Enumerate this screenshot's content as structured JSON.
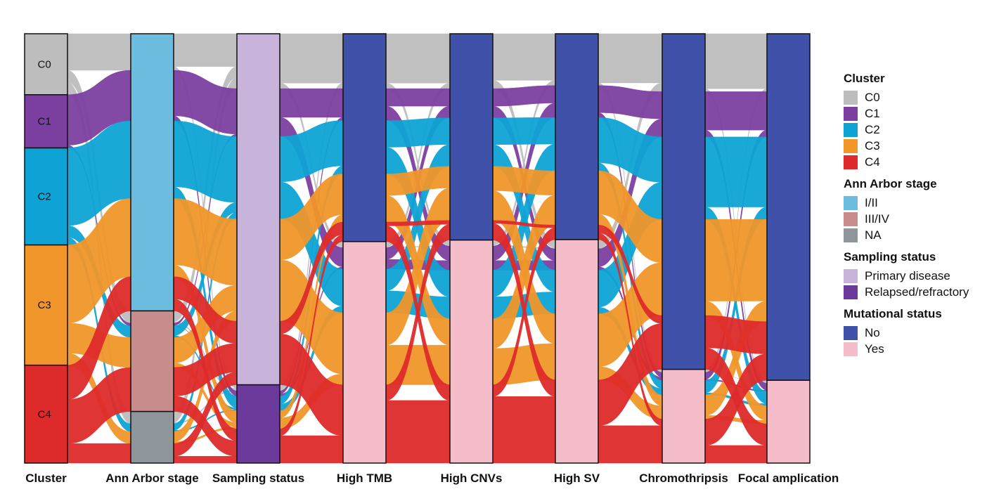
{
  "chart_data": {
    "type": "alluvial",
    "title": "",
    "axes": [
      "Cluster",
      "Ann Arbor stage",
      "Sampling status",
      "High TMB",
      "High CNVs",
      "High SV",
      "Chromothripsis",
      "Focal amplication"
    ],
    "categories": {
      "Cluster": [
        "C0",
        "C1",
        "C2",
        "C3",
        "C4"
      ],
      "Ann Arbor stage": [
        "I/II",
        "III/IV",
        "NA"
      ],
      "Sampling status": [
        "Primary disease",
        "Relapsed/refractory"
      ],
      "Mutational status": [
        "No",
        "Yes"
      ]
    },
    "proportions": {
      "Cluster": [
        0.142,
        0.124,
        0.226,
        0.28,
        0.228
      ],
      "Ann Arbor stage": [
        0.662,
        0.226,
        0.112
      ],
      "Sampling status": [
        0.818,
        0.182
      ],
      "High TMB": [
        0.494,
        0.506
      ],
      "High CNVs": [
        0.494,
        0.506
      ],
      "High SV": [
        0.494,
        0.506
      ],
      "Chromothripsis": [
        0.789,
        0.211
      ],
      "Focal amplication": [
        0.831,
        0.169
      ]
    },
    "flows_by_cluster": {
      "Ann Arbor stage": [
        [
          0.6,
          0.2,
          0.2
        ],
        [
          0.95,
          0.05,
          0.0
        ],
        [
          0.8,
          0.12,
          0.08
        ],
        [
          0.65,
          0.25,
          0.1
        ],
        [
          0.35,
          0.45,
          0.2
        ]
      ],
      "Sampling status": [
        [
          0.9,
          0.1
        ],
        [
          0.9,
          0.1
        ],
        [
          0.85,
          0.15
        ],
        [
          0.85,
          0.15
        ],
        [
          0.65,
          0.35
        ]
      ],
      "High TMB": [
        [
          0.9,
          0.1
        ],
        [
          0.6,
          0.4
        ],
        [
          0.55,
          0.45
        ],
        [
          0.4,
          0.6
        ],
        [
          0.2,
          0.8
        ]
      ],
      "High CNVs": [
        [
          0.9,
          0.1
        ],
        [
          0.55,
          0.45
        ],
        [
          0.5,
          0.5
        ],
        [
          0.45,
          0.55
        ],
        [
          0.2,
          0.8
        ]
      ],
      "High SV": [
        [
          0.85,
          0.15
        ],
        [
          0.6,
          0.4
        ],
        [
          0.55,
          0.45
        ],
        [
          0.45,
          0.55
        ],
        [
          0.15,
          0.85
        ]
      ],
      "Chromothripsis": [
        [
          0.95,
          0.05
        ],
        [
          0.85,
          0.15
        ],
        [
          0.85,
          0.15
        ],
        [
          0.8,
          0.2
        ],
        [
          0.55,
          0.45
        ]
      ],
      "Focal amplication": [
        [
          0.95,
          0.05
        ],
        [
          0.85,
          0.15
        ],
        [
          0.85,
          0.15
        ],
        [
          0.85,
          0.15
        ],
        [
          0.6,
          0.4
        ]
      ]
    },
    "legend_placement": "right",
    "grid": false
  },
  "legend": [
    {
      "title": "Cluster",
      "items": [
        {
          "label": "C0",
          "color": "#bdbdbd"
        },
        {
          "label": "C1",
          "color": "#7b3fa0"
        },
        {
          "label": "C2",
          "color": "#0ea3d4"
        },
        {
          "label": "C3",
          "color": "#f0962a"
        },
        {
          "label": "C4",
          "color": "#de2a2a"
        }
      ]
    },
    {
      "title": "Ann Arbor stage",
      "items": [
        {
          "label": "I/II",
          "color": "#6bbcdf"
        },
        {
          "label": "III/IV",
          "color": "#c98c8c"
        },
        {
          "label": "NA",
          "color": "#8e969c"
        }
      ]
    },
    {
      "title": "Sampling status",
      "items": [
        {
          "label": "Primary disease",
          "color": "#c8b4da"
        },
        {
          "label": "Relapsed/refractory",
          "color": "#6b3a9b"
        }
      ]
    },
    {
      "title": "Mutational status",
      "items": [
        {
          "label": "No",
          "color": "#3f51a8"
        },
        {
          "label": "Yes",
          "color": "#f5bcca"
        }
      ]
    }
  ],
  "colors": {
    "cluster": [
      "#bdbdbd",
      "#7b3fa0",
      "#0ea3d4",
      "#f0962a",
      "#de2a2a"
    ],
    "stage": [
      "#6bbcdf",
      "#c98c8c",
      "#8e969c"
    ],
    "sampling": [
      "#c8b4da",
      "#6b3a9b"
    ],
    "status": [
      "#3f51a8",
      "#f5bcca"
    ]
  }
}
